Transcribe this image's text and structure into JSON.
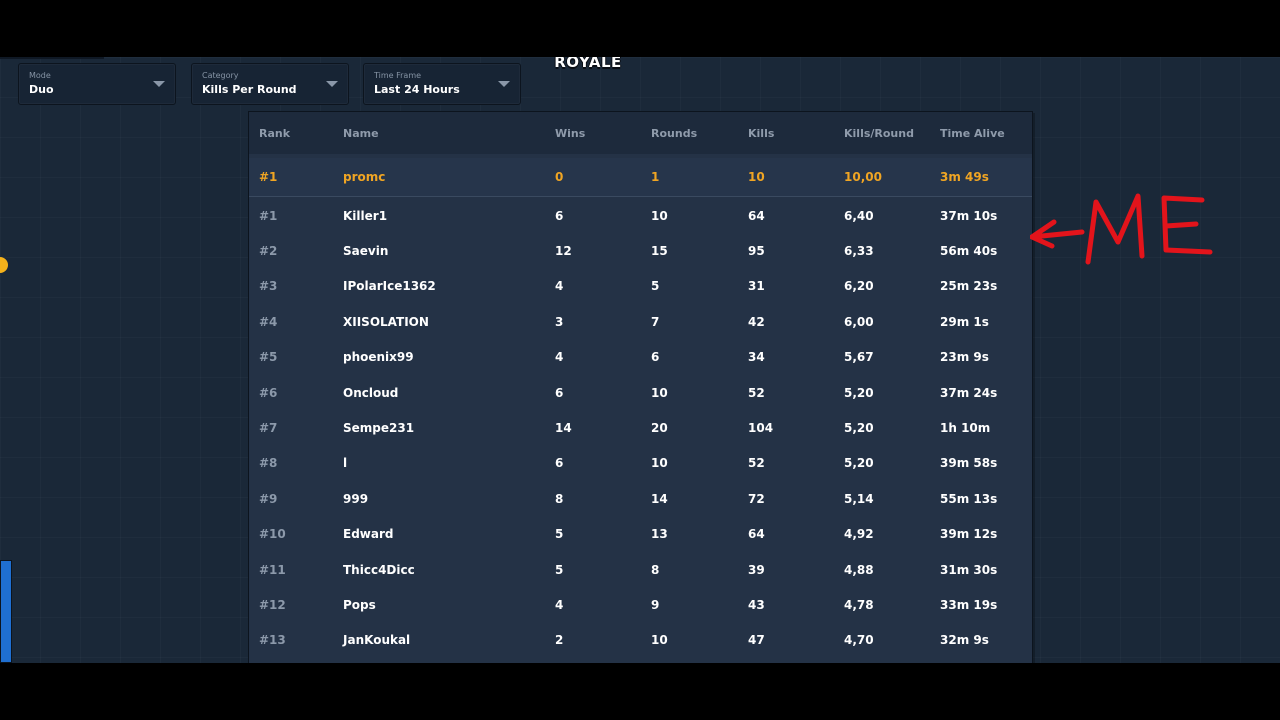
{
  "logo": {
    "text": "ROYALE"
  },
  "filters": [
    {
      "label": "Mode",
      "value": "Duo"
    },
    {
      "label": "Category",
      "value": "Kills Per Round"
    },
    {
      "label": "Time Frame",
      "value": "Last 24 Hours"
    }
  ],
  "table": {
    "headers": {
      "rank": "Rank",
      "name": "Name",
      "wins": "Wins",
      "rounds": "Rounds",
      "kills": "Kills",
      "kpr": "Kills/Round",
      "time": "Time Alive"
    },
    "me": {
      "rank": "#1",
      "name": "promc",
      "wins": "0",
      "rounds": "1",
      "kills": "10",
      "kpr": "10,00",
      "time": "3m 49s"
    },
    "rows": [
      {
        "rank": "#1",
        "name": "Killer1",
        "wins": "6",
        "rounds": "10",
        "kills": "64",
        "kpr": "6,40",
        "time": "37m 10s"
      },
      {
        "rank": "#2",
        "name": "Saevin",
        "wins": "12",
        "rounds": "15",
        "kills": "95",
        "kpr": "6,33",
        "time": "56m 40s"
      },
      {
        "rank": "#3",
        "name": "IPolarIce1362",
        "wins": "4",
        "rounds": "5",
        "kills": "31",
        "kpr": "6,20",
        "time": "25m 23s"
      },
      {
        "rank": "#4",
        "name": "XIISOLATION",
        "wins": "3",
        "rounds": "7",
        "kills": "42",
        "kpr": "6,00",
        "time": "29m 1s"
      },
      {
        "rank": "#5",
        "name": "phoenix99",
        "wins": "4",
        "rounds": "6",
        "kills": "34",
        "kpr": "5,67",
        "time": "23m 9s"
      },
      {
        "rank": "#6",
        "name": "Oncloud",
        "wins": "6",
        "rounds": "10",
        "kills": "52",
        "kpr": "5,20",
        "time": "37m 24s"
      },
      {
        "rank": "#7",
        "name": "Sempe231",
        "wins": "14",
        "rounds": "20",
        "kills": "104",
        "kpr": "5,20",
        "time": "1h 10m"
      },
      {
        "rank": "#8",
        "name": "l",
        "wins": "6",
        "rounds": "10",
        "kills": "52",
        "kpr": "5,20",
        "time": "39m 58s"
      },
      {
        "rank": "#9",
        "name": "999",
        "wins": "8",
        "rounds": "14",
        "kills": "72",
        "kpr": "5,14",
        "time": "55m 13s"
      },
      {
        "rank": "#10",
        "name": "Edward",
        "wins": "5",
        "rounds": "13",
        "kills": "64",
        "kpr": "4,92",
        "time": "39m 12s"
      },
      {
        "rank": "#11",
        "name": "Thicc4Dicc",
        "wins": "5",
        "rounds": "8",
        "kills": "39",
        "kpr": "4,88",
        "time": "31m 30s"
      },
      {
        "rank": "#12",
        "name": "Pops",
        "wins": "4",
        "rounds": "9",
        "kills": "43",
        "kpr": "4,78",
        "time": "33m 19s"
      },
      {
        "rank": "#13",
        "name": "JanKoukal",
        "wins": "2",
        "rounds": "10",
        "kills": "47",
        "kpr": "4,70",
        "time": "32m 9s"
      }
    ]
  },
  "annotation": {
    "text": "ME",
    "color": "#e3141b",
    "icon": "hand-drawn-arrow-icon"
  },
  "colors": {
    "background": "#1a2838",
    "panel": "#243246",
    "highlight": "#f0a523",
    "rank_muted": "#8c99aa"
  }
}
